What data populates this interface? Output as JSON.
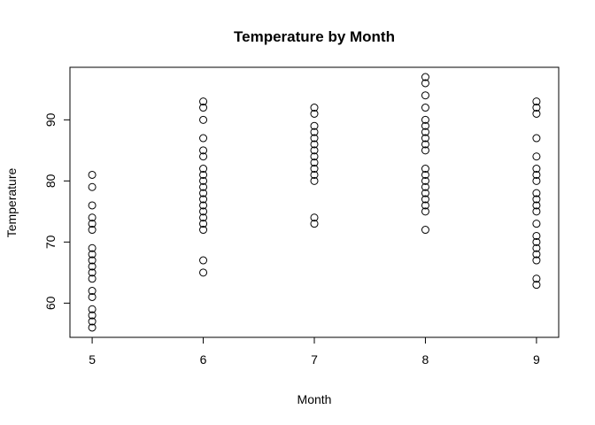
{
  "chart_data": {
    "type": "scatter",
    "title": "Temperature by Month",
    "xlabel": "Month",
    "ylabel": "Temperature",
    "xlim": [
      4.8,
      9.2
    ],
    "ylim": [
      54.4,
      98.6
    ],
    "x_ticks": [
      5,
      6,
      7,
      8,
      9
    ],
    "y_ticks": [
      60,
      70,
      80,
      90
    ],
    "grid": false,
    "legend": "none",
    "marker": "open-circle",
    "point_color": "#000000",
    "series": [
      {
        "points": [
          [
            5,
            56
          ],
          [
            5,
            57
          ],
          [
            5,
            58
          ],
          [
            5,
            59
          ],
          [
            5,
            61
          ],
          [
            5,
            62
          ],
          [
            5,
            64
          ],
          [
            5,
            65
          ],
          [
            5,
            66
          ],
          [
            5,
            67
          ],
          [
            5,
            68
          ],
          [
            5,
            69
          ],
          [
            5,
            72
          ],
          [
            5,
            73
          ],
          [
            5,
            74
          ],
          [
            5,
            76
          ],
          [
            5,
            79
          ],
          [
            5,
            81
          ],
          [
            6,
            65
          ],
          [
            6,
            67
          ],
          [
            6,
            72
          ],
          [
            6,
            73
          ],
          [
            6,
            74
          ],
          [
            6,
            75
          ],
          [
            6,
            76
          ],
          [
            6,
            77
          ],
          [
            6,
            78
          ],
          [
            6,
            79
          ],
          [
            6,
            80
          ],
          [
            6,
            81
          ],
          [
            6,
            82
          ],
          [
            6,
            84
          ],
          [
            6,
            85
          ],
          [
            6,
            87
          ],
          [
            6,
            90
          ],
          [
            6,
            92
          ],
          [
            6,
            93
          ],
          [
            7,
            73
          ],
          [
            7,
            74
          ],
          [
            7,
            80
          ],
          [
            7,
            81
          ],
          [
            7,
            82
          ],
          [
            7,
            83
          ],
          [
            7,
            84
          ],
          [
            7,
            85
          ],
          [
            7,
            86
          ],
          [
            7,
            87
          ],
          [
            7,
            88
          ],
          [
            7,
            89
          ],
          [
            7,
            91
          ],
          [
            7,
            92
          ],
          [
            8,
            72
          ],
          [
            8,
            75
          ],
          [
            8,
            76
          ],
          [
            8,
            77
          ],
          [
            8,
            78
          ],
          [
            8,
            79
          ],
          [
            8,
            80
          ],
          [
            8,
            81
          ],
          [
            8,
            82
          ],
          [
            8,
            85
          ],
          [
            8,
            86
          ],
          [
            8,
            87
          ],
          [
            8,
            88
          ],
          [
            8,
            89
          ],
          [
            8,
            90
          ],
          [
            8,
            92
          ],
          [
            8,
            94
          ],
          [
            8,
            96
          ],
          [
            8,
            97
          ],
          [
            9,
            63
          ],
          [
            9,
            64
          ],
          [
            9,
            67
          ],
          [
            9,
            68
          ],
          [
            9,
            69
          ],
          [
            9,
            70
          ],
          [
            9,
            71
          ],
          [
            9,
            73
          ],
          [
            9,
            75
          ],
          [
            9,
            76
          ],
          [
            9,
            77
          ],
          [
            9,
            78
          ],
          [
            9,
            80
          ],
          [
            9,
            81
          ],
          [
            9,
            82
          ],
          [
            9,
            84
          ],
          [
            9,
            87
          ],
          [
            9,
            91
          ],
          [
            9,
            92
          ],
          [
            9,
            93
          ]
        ]
      }
    ]
  }
}
